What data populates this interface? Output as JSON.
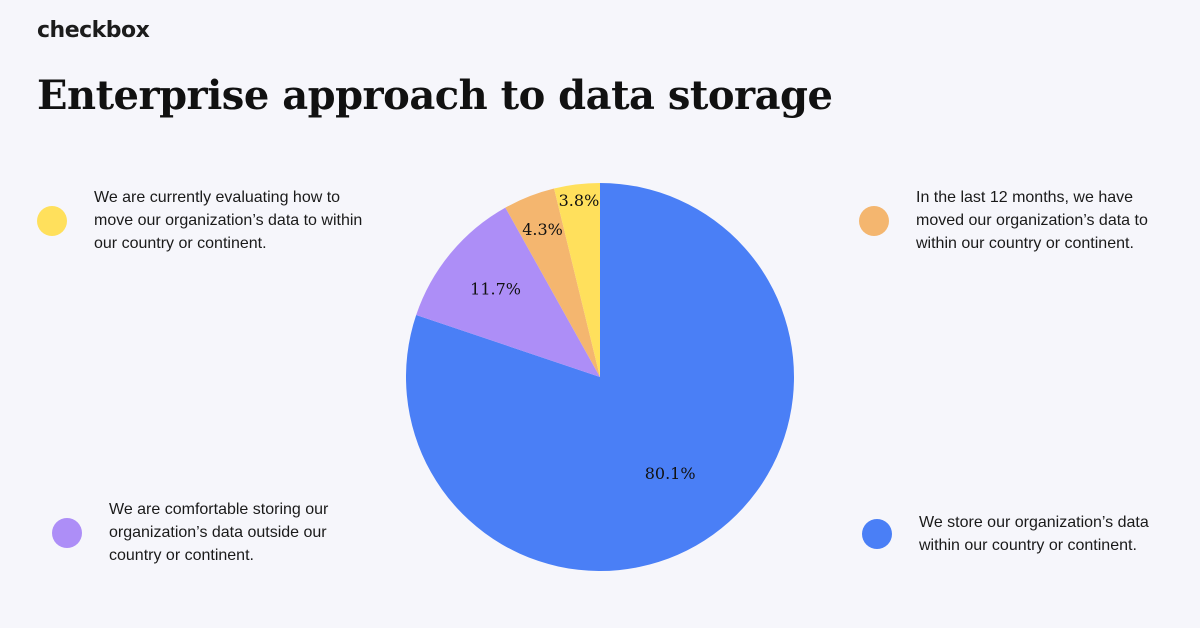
{
  "brand": {
    "name": "checkbox"
  },
  "header": {
    "title": "Enterprise approach to data storage"
  },
  "legend": [
    {
      "id": "evaluating",
      "text": "We are currently evaluating how to move our organization’s data to within our country or continent.",
      "color": "#ffe05c"
    },
    {
      "id": "moved",
      "text": "In the last 12 months, we have moved our organization’s data to within our country or continent.",
      "color": "#f4b66f"
    },
    {
      "id": "comfortable",
      "text": "We are comfortable storing our organization’s data outside our country or continent.",
      "color": "#ad8ef7"
    },
    {
      "id": "store-within",
      "text": "We store our organization’s data within our country or continent.",
      "color": "#4a7ff6"
    }
  ],
  "chart_data": {
    "type": "pie",
    "slices": [
      {
        "id": "store-within",
        "value": 80.1,
        "label": "80.1%",
        "color": "#4a7ff6"
      },
      {
        "id": "comfortable",
        "value": 11.7,
        "label": "11.7%",
        "color": "#ad8ef7"
      },
      {
        "id": "moved",
        "value": 4.3,
        "label": "4.3%",
        "color": "#f4b66f"
      },
      {
        "id": "evaluating",
        "value": 3.8,
        "label": "3.8%",
        "color": "#ffe05c"
      }
    ]
  }
}
